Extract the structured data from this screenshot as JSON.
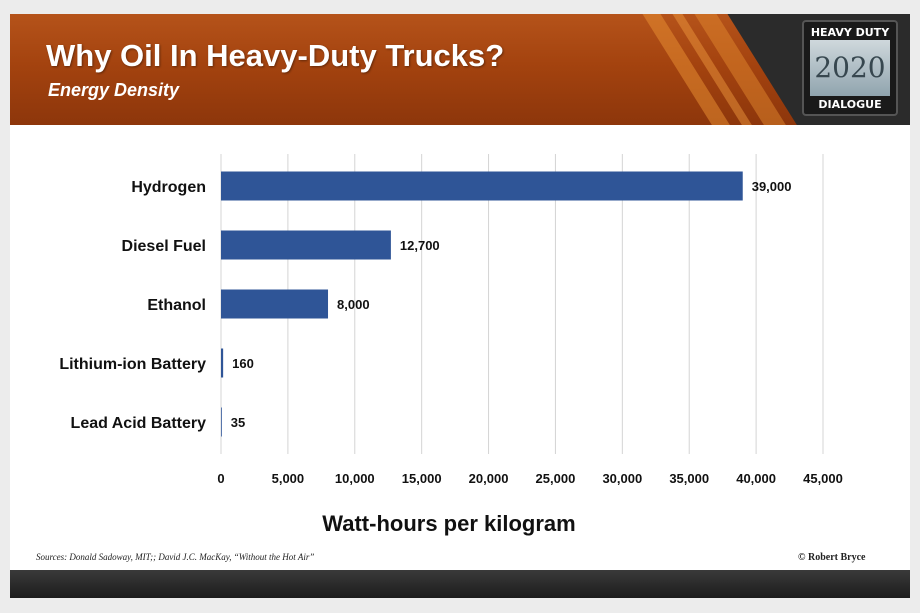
{
  "header": {
    "title": "Why Oil In Heavy-Duty Trucks?",
    "subtitle": "Energy Density",
    "logo": {
      "line1": "HEAVY DUTY",
      "line2": "2020",
      "line3": "DIALOGUE"
    }
  },
  "chart_data": {
    "type": "bar",
    "orientation": "horizontal",
    "categories": [
      "Hydrogen",
      "Diesel Fuel",
      "Ethanol",
      "Lithium-ion Battery",
      "Lead Acid Battery"
    ],
    "values": [
      39000,
      12700,
      8000,
      160,
      35
    ],
    "value_labels": [
      "39,000",
      "12,700",
      "8,000",
      "160",
      "35"
    ],
    "xlabel": "Watt-hours per kilogram",
    "ylabel": "",
    "xlim": [
      0,
      45000
    ],
    "xticks": [
      0,
      5000,
      10000,
      15000,
      20000,
      25000,
      30000,
      35000,
      40000,
      45000
    ],
    "xtick_labels": [
      "0",
      "5,000",
      "10,000",
      "15,000",
      "20,000",
      "25,000",
      "30,000",
      "35,000",
      "40,000",
      "45,000"
    ],
    "grid": true,
    "bar_color": "#2f5597"
  },
  "footer": {
    "source": "Sources: Donald Sadoway, MIT;; David J.C. MacKay, “Without the Hot Air”",
    "copyright": "© Robert Bryce"
  }
}
